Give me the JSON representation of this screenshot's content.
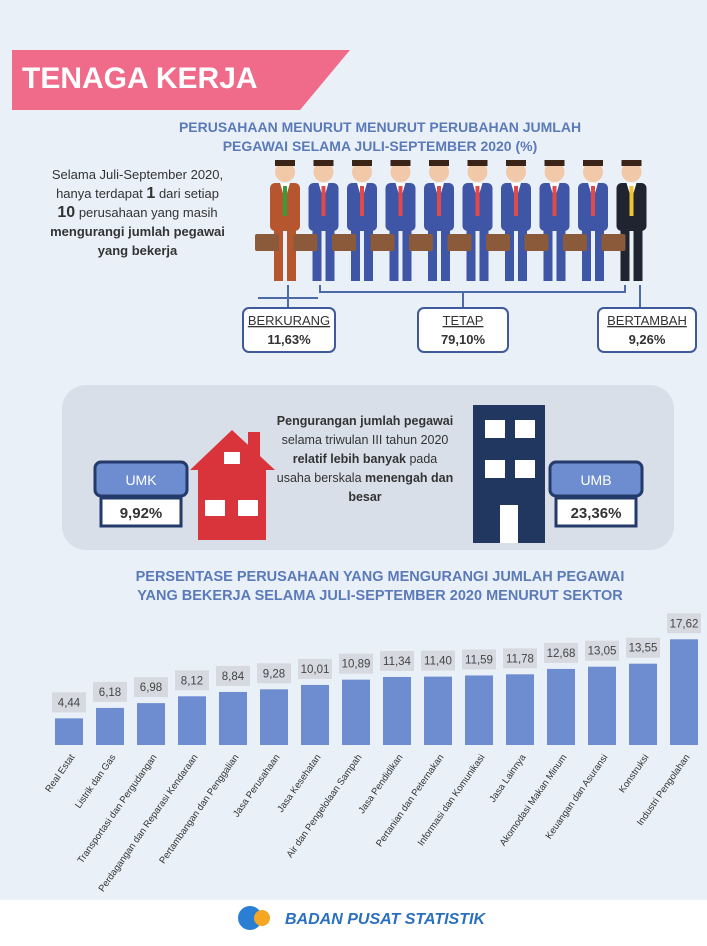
{
  "header": {
    "title": "TENAGA KERJA"
  },
  "section1": {
    "title": [
      "PERUSAHAAN MENURUT MENURUT PERUBAHAN JUMLAH",
      "PEGAWAI SELAMA JULI-SEPTEMBER 2020 (%)"
    ],
    "intro": [
      "Selama Juli-September 2020, hanya terdapat ",
      "1",
      " dari setiap ",
      "10",
      " perusahaan yang masih ",
      "mengurangi jumlah pegawai yang bekerja"
    ],
    "groups": [
      {
        "label": "BERKURANG",
        "value": "11,63%"
      },
      {
        "label": "TETAP",
        "value": "79,10%"
      },
      {
        "label": "BERTAMBAH",
        "value": "9,26%"
      }
    ]
  },
  "section2": {
    "text": [
      "Pengurangan jumlah pegawai",
      " selama triwulan III tahun 2020 ",
      "relatif lebih banyak",
      " pada usaha berskala ",
      "menengah dan besar"
    ],
    "umk": {
      "label": "UMK",
      "value": "9,92%"
    },
    "umb": {
      "label": "UMB",
      "value": "23,36%"
    }
  },
  "chart_data": {
    "type": "bar",
    "title": [
      "PERSENTASE PERUSAHAAN YANG MENGURANGI JUMLAH PEGAWAI",
      "YANG BEKERJA SELAMA JULI-SEPTEMBER 2020 MENURUT SEKTOR"
    ],
    "categories": [
      "Real Estat",
      "Listrik dan Gas",
      "Transportasi dan Pergudangan",
      "Perdagangan dan Reparasi Kendaraan",
      "Pertambangan dan Penggalian",
      "Jasa Perusahaan",
      "Jasa Kesehatan",
      "Air dan Pengelolaan Sampah",
      "Jasa Pendidikan",
      "Pertanian dan Peternakan",
      "Informasi dan Komunikasi",
      "Jasa Lainnya",
      "Akomodasi Makan Minum",
      "Keuangan dan Asuransi",
      "Konstruksi",
      "Industri Pengolahan"
    ],
    "values": [
      4.44,
      6.18,
      6.98,
      8.12,
      8.84,
      9.28,
      10.01,
      10.89,
      11.34,
      11.4,
      11.59,
      11.78,
      12.68,
      13.05,
      13.55,
      17.62
    ],
    "value_labels": [
      "4,44",
      "6,18",
      "6,98",
      "8,12",
      "8,84",
      "9,28",
      "10,01",
      "10,89",
      "11,34",
      "11,40",
      "11,59",
      "11,78",
      "12,68",
      "13,05",
      "13,55",
      "17,62"
    ],
    "color": "#6d8dd0"
  },
  "footer": {
    "text": "BADAN PUSAT STATISTIK"
  }
}
